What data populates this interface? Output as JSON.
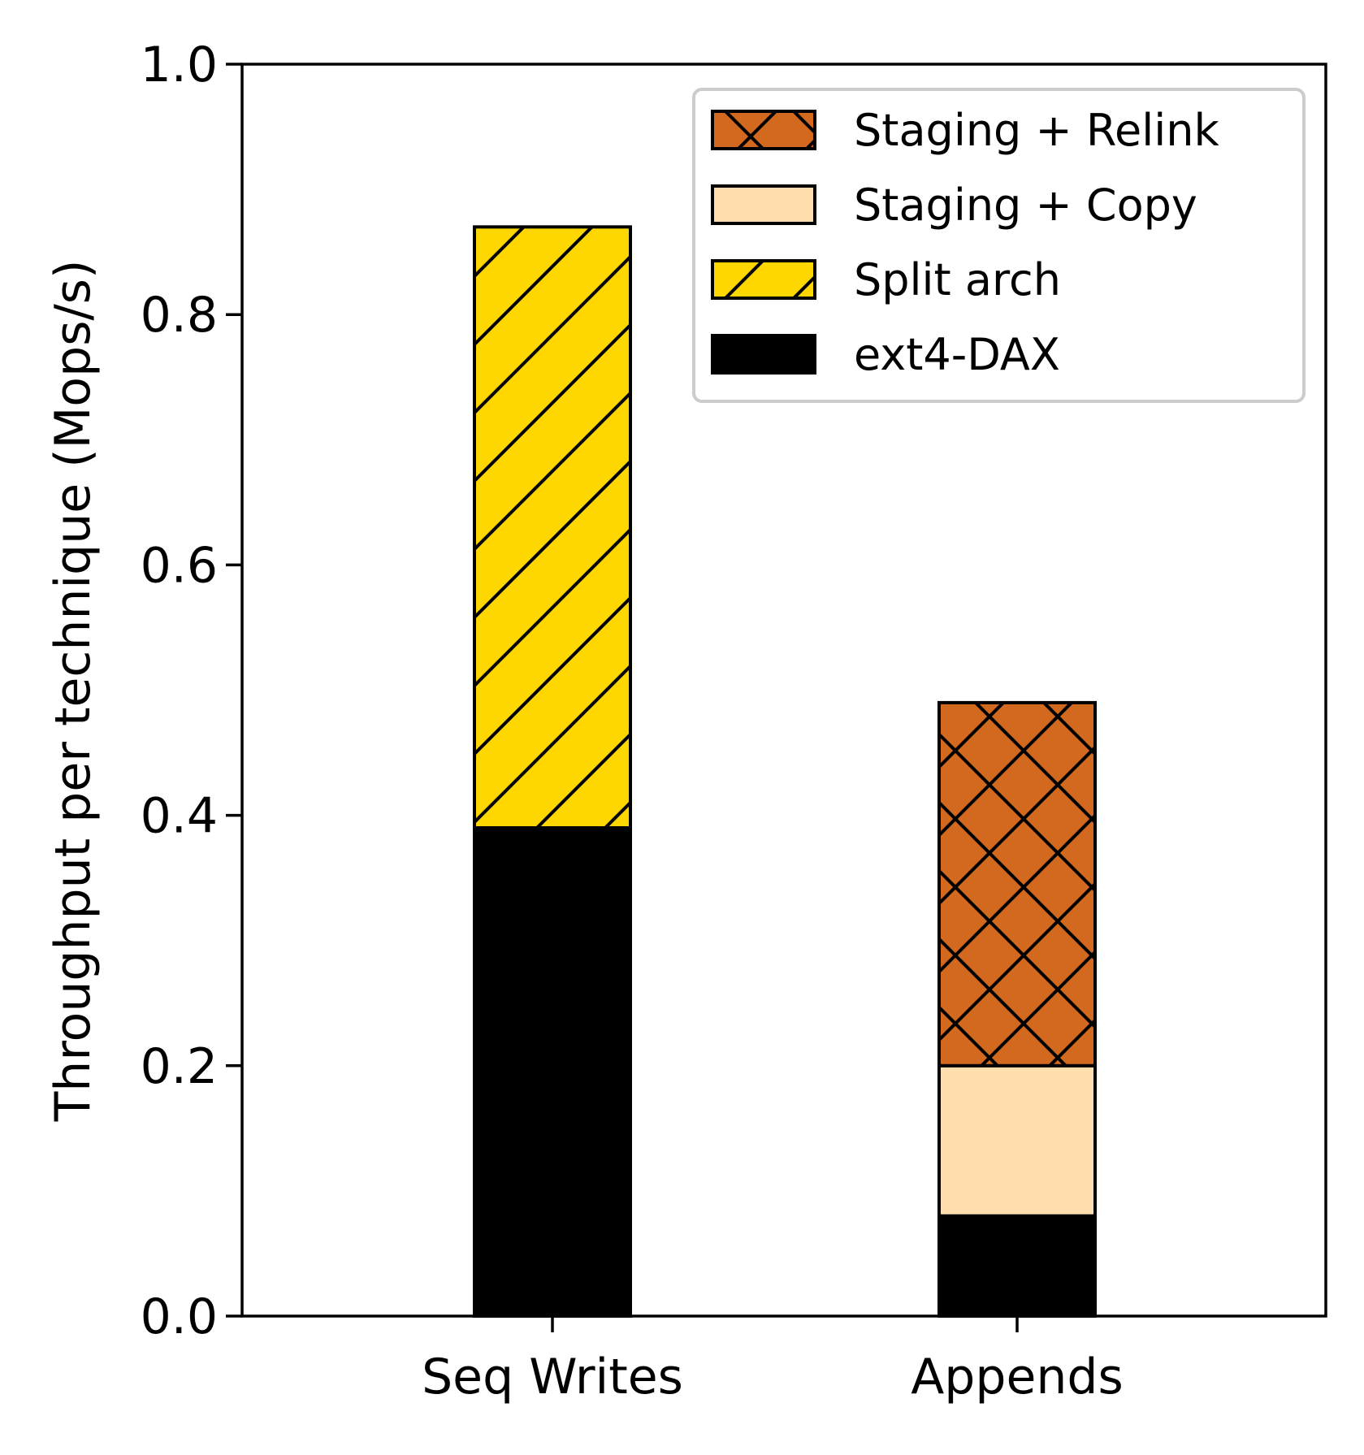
{
  "chart_data": {
    "type": "bar",
    "stacked": true,
    "categories": [
      "Seq Writes",
      "Appends"
    ],
    "ylabel": "Throughput per technique (Mops/s)",
    "xlabel": "",
    "ylim": [
      0,
      1.0
    ],
    "yticks": [
      "0.0",
      "0.2",
      "0.4",
      "0.6",
      "0.8",
      "1.0"
    ],
    "grid": false,
    "legend_position": "top-right",
    "series": [
      {
        "name": "ext4-DAX",
        "values": [
          0.39,
          0.08
        ],
        "color": "#000000",
        "hatch": "none"
      },
      {
        "name": "Split arch",
        "values": [
          0.48,
          0
        ],
        "color": "#FFD700",
        "hatch": "diagonal"
      },
      {
        "name": "Staging + Copy",
        "values": [
          0,
          0.12
        ],
        "color": "#FFDEAD",
        "hatch": "none"
      },
      {
        "name": "Staging + Relink",
        "values": [
          0,
          0.29
        ],
        "color": "#D2691E",
        "hatch": "crosshatch"
      }
    ],
    "legend_order": [
      "Staging + Relink",
      "Staging + Copy",
      "Split arch",
      "ext4-DAX"
    ]
  }
}
